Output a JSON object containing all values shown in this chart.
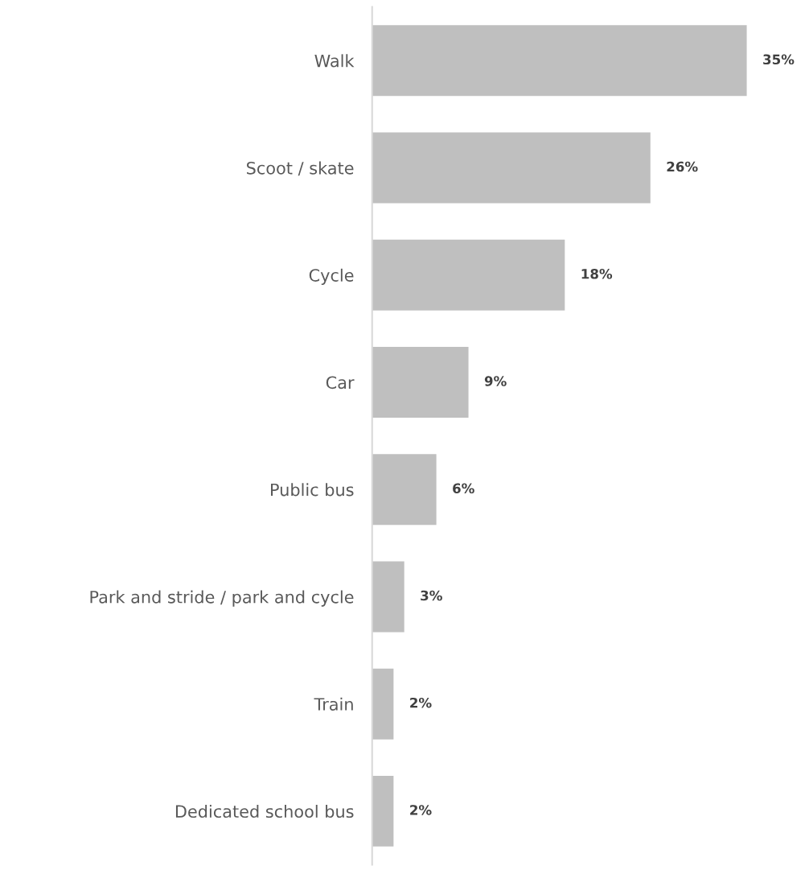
{
  "chart_data": {
    "type": "bar",
    "orientation": "horizontal",
    "categories": [
      "Walk",
      "Scoot / skate",
      "Cycle",
      "Car",
      "Public bus",
      "Park and stride / park and cycle",
      "Train",
      "Dedicated school bus"
    ],
    "values": [
      35,
      26,
      18,
      9,
      6,
      3,
      2,
      2
    ],
    "value_labels": [
      "35%",
      "26%",
      "18%",
      "9%",
      "6%",
      "3%",
      "2%",
      "2%"
    ],
    "color": "#bfbfbf",
    "grid": false,
    "legend": false
  }
}
